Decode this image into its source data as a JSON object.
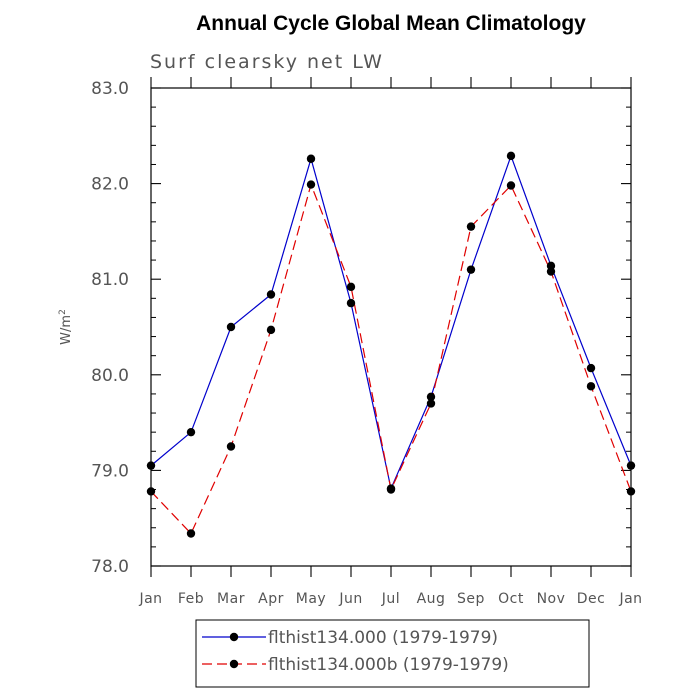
{
  "chart_data": {
    "type": "line",
    "title": "Annual Cycle Global Mean Climatology",
    "subtitle": "Surf clearsky net LW",
    "xlabel": "",
    "ylabel": "W/m",
    "ylabel_superscript": "2",
    "categories": [
      "Jan",
      "Feb",
      "Mar",
      "Apr",
      "May",
      "Jun",
      "Jul",
      "Aug",
      "Sep",
      "Oct",
      "Nov",
      "Dec",
      "Jan"
    ],
    "ylim": [
      78.0,
      83.0
    ],
    "yticks": [
      "78.0",
      "79.0",
      "80.0",
      "81.0",
      "82.0",
      "83.0"
    ],
    "grid": false,
    "legend_position": "bottom",
    "series": [
      {
        "name": "flthist134.000 (1979-1979)",
        "color": "#0000cc",
        "dash": "solid",
        "values": [
          79.05,
          79.4,
          80.5,
          80.84,
          82.26,
          80.75,
          78.81,
          79.77,
          81.1,
          82.29,
          81.14,
          80.07,
          79.05
        ]
      },
      {
        "name": "flthist134.000b (1979-1979)",
        "color": "#e00000",
        "dash": "dashed",
        "values": [
          78.78,
          78.34,
          79.25,
          80.47,
          81.99,
          80.92,
          78.8,
          79.7,
          81.55,
          81.98,
          81.08,
          79.88,
          78.78
        ]
      }
    ]
  }
}
